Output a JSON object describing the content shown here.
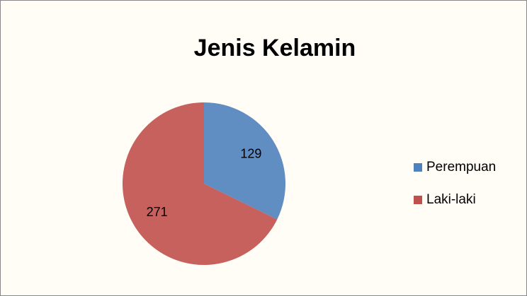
{
  "chart_data": {
    "type": "pie",
    "title": "Jenis Kelamin",
    "labels": [
      "Perempuan",
      "Laki-laki"
    ],
    "values": [
      129,
      271
    ],
    "colors": [
      "#4f81bd",
      "#c0504d"
    ],
    "legend": "right"
  }
}
